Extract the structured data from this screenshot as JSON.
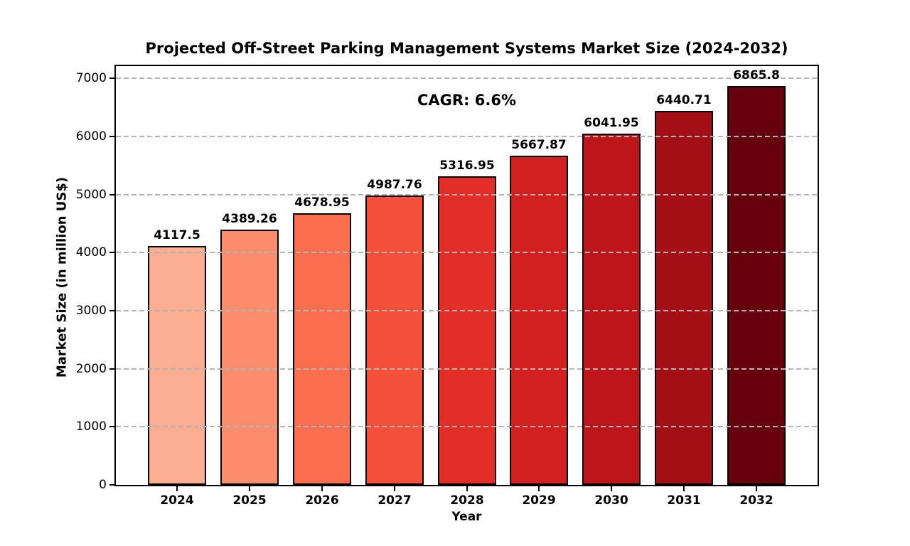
{
  "chart_data": {
    "type": "bar",
    "title": "Projected Off-Street Parking Management Systems Market Size (2024-2032)",
    "xlabel": "Year",
    "ylabel": "Market Size (in million US$)",
    "annotation": "CAGR: 6.6%",
    "categories": [
      "2024",
      "2025",
      "2026",
      "2027",
      "2028",
      "2029",
      "2030",
      "2031",
      "2032"
    ],
    "values": [
      4117.5,
      4389.26,
      4678.95,
      4987.76,
      5316.95,
      5667.87,
      6041.95,
      6440.71,
      6865.8
    ],
    "value_labels": [
      "4117.5",
      "4389.26",
      "4678.95",
      "4987.76",
      "5316.95",
      "5667.87",
      "6041.95",
      "6440.71",
      "6865.8"
    ],
    "bar_colors": [
      "#FCAE93",
      "#FC8E6E",
      "#FB6F4F",
      "#F4503A",
      "#E22E27",
      "#D22020",
      "#BE151A",
      "#A30F15",
      "#67000D"
    ],
    "bar_edge_color": "#000000",
    "yticks": [
      0,
      1000,
      2000,
      3000,
      4000,
      5000,
      6000,
      7000
    ],
    "ylim": [
      0,
      7210
    ],
    "grid": {
      "axis": "y",
      "style": "dashed",
      "color": "#b4b4b4"
    },
    "legend_position": "none"
  }
}
